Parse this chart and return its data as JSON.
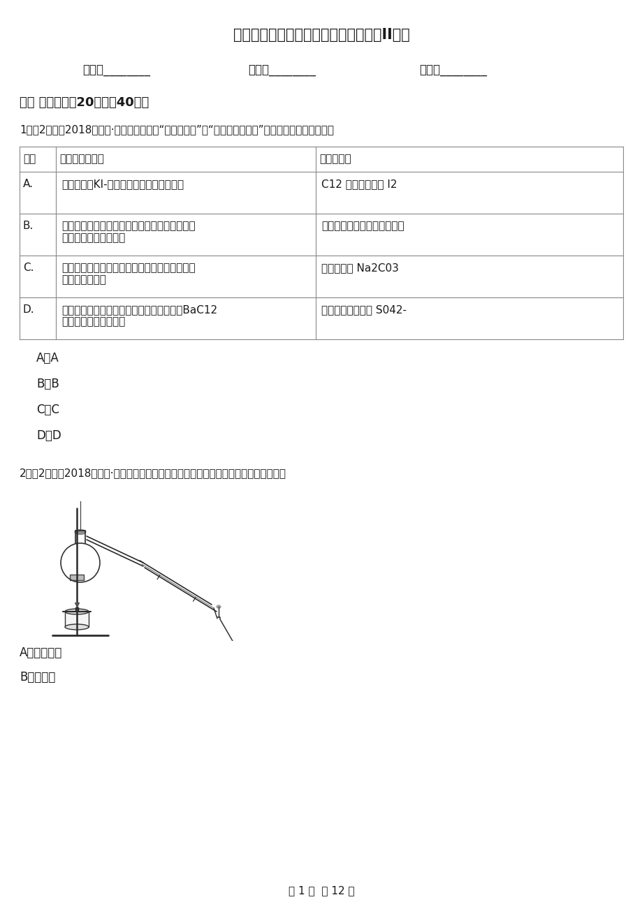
{
  "title": "陕西省高一上学期化学期中考试试卷（II）卷",
  "name_field": "姓名：________",
  "class_field": "班级：________",
  "score_field": "成绩：________",
  "section1": "一、 单选题（內20题；內40分）",
  "q1_header": "1．（2分）（2018高一下·北京期中）下列“解释或结论”与“实验操作及现象”不相符的一组是（　　）",
  "table_col_headers": [
    "序号",
    "实验操作及现象",
    "解释或结论"
  ],
  "table_rows": [
    {
      "id": "A.",
      "op_lines": [
        "将氯水滴入KI-淠粉溶液中，溶液变成蓝色"
      ],
      "con_lines": [
        "C12 的氧化性强于 I2"
      ]
    },
    {
      "id": "B.",
      "op_lines": [
        "将打磨后的镁条放入盛有稀盐酸的试管中，用手",
        "触摸试管外壁感觉变热"
      ],
      "con_lines": [
        "镁条与稀盐酸反应是放热反应"
      ]
    },
    {
      "id": "C.",
      "op_lines": [
        "向某钓盐溶液中加入稀盐酸，产生能使澄清石灿",
        "水变混浊的气体"
      ],
      "con_lines": [
        "该盐一定是 Na2C03"
      ]
    },
    {
      "id": "D.",
      "op_lines": [
        "向某溶液中加入稀盐酸无明显现象，再加入BaC12",
        "溶液，有白色沉淠生成"
      ],
      "con_lines": [
        "该溶液中一定含有 S042-"
      ]
    }
  ],
  "q1_options": [
    "A．A",
    "B．B",
    "C．C",
    "D．D"
  ],
  "q2_header": "2．（2分）（2018高一下·温州期中）下图实验装置中，没有出现的仪器名称为（　　）",
  "q2_options": [
    "A．蕲馏烧瓶",
    "B．温度计"
  ],
  "footer": "第 1 页  共 12 页",
  "bg_color": "#ffffff",
  "text_color": "#1a1a1a",
  "table_border_color": "#888888"
}
